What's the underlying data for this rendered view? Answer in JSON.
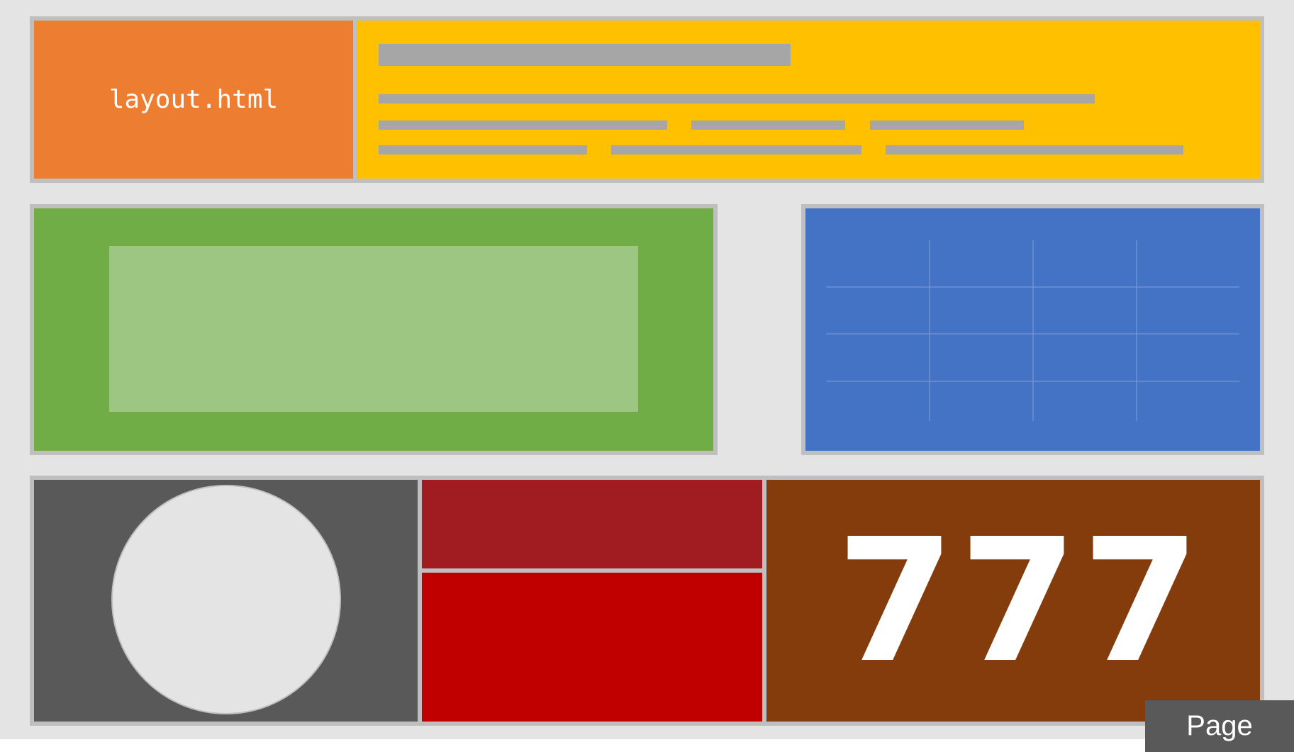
{
  "file_tile": {
    "label": "layout.html"
  },
  "number_tile": {
    "value": "777"
  },
  "page_tab": {
    "label": "Page"
  },
  "colors": {
    "background": "#e4e4e4",
    "border": "#bfbfbf",
    "orange": "#ed7d31",
    "yellow": "#ffc000",
    "green": "#70ad47",
    "light_green": "#9dc682",
    "blue": "#4472c4",
    "dark_gray": "#595959",
    "dark_red": "#a11c20",
    "red": "#c00000",
    "brown": "#843c0c",
    "placeholder": "#a6a6a6"
  }
}
